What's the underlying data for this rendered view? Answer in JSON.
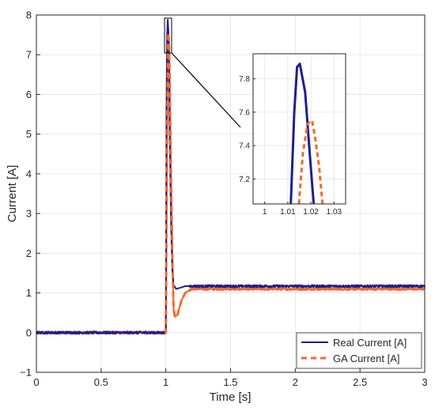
{
  "chart_data": {
    "type": "line",
    "title": "",
    "xlabel": "Time [s]",
    "ylabel": "Current [A]",
    "xlim": [
      0,
      3
    ],
    "ylim": [
      -1,
      8
    ],
    "x_ticks": [
      "0",
      "0.5",
      "1",
      "1.5",
      "2",
      "2.5",
      "3"
    ],
    "y_ticks": [
      "−1",
      "0",
      "1",
      "2",
      "3",
      "4",
      "5",
      "6",
      "7",
      "8"
    ],
    "grid": true,
    "legend_position": "bottom-right",
    "series": [
      {
        "name": "Real Current [A]",
        "color": "#1f1f8c",
        "style": "solid",
        "x": [
          0,
          1.0,
          1.005,
          1.01,
          1.015,
          1.02,
          1.025,
          1.03,
          1.04,
          1.05,
          1.06,
          1.08,
          1.1,
          1.15,
          3.0
        ],
        "y": [
          0,
          0,
          5.5,
          7.5,
          7.88,
          7.6,
          6.5,
          5.0,
          2.8,
          1.6,
          1.2,
          1.1,
          1.12,
          1.17,
          1.17
        ]
      },
      {
        "name": "GA Current [A]",
        "color": "#f26a2e",
        "style": "dashed",
        "x": [
          0,
          1.0,
          1.01,
          1.018,
          1.02,
          1.025,
          1.03,
          1.04,
          1.05,
          1.06,
          1.07,
          1.09,
          1.12,
          1.15,
          1.2,
          3.0
        ],
        "y": [
          0,
          0,
          5.0,
          7.45,
          7.55,
          7.3,
          6.4,
          4.0,
          2.0,
          0.6,
          0.4,
          0.45,
          0.8,
          1.0,
          1.1,
          1.1
        ]
      }
    ],
    "inset": {
      "xlim": [
        0.995,
        1.035
      ],
      "ylim": [
        7.05,
        7.95
      ],
      "x_ticks": [
        "1",
        "1.01",
        "1.02",
        "1.03"
      ],
      "y_ticks": [
        "7.2",
        "7.4",
        "7.6",
        "7.8"
      ],
      "series": [
        {
          "name": "Real Current [A]",
          "x": [
            1.0113,
            1.0128,
            1.014,
            1.0152,
            1.0175,
            1.0195,
            1.0212
          ],
          "y": [
            7.05,
            7.6,
            7.87,
            7.89,
            7.72,
            7.35,
            7.05
          ]
        },
        {
          "name": "GA Current [A]",
          "x": [
            1.0148,
            1.0165,
            1.0185,
            1.0205,
            1.0218,
            1.0235,
            1.025
          ],
          "y": [
            7.05,
            7.35,
            7.53,
            7.55,
            7.45,
            7.28,
            7.05
          ]
        }
      ]
    }
  }
}
